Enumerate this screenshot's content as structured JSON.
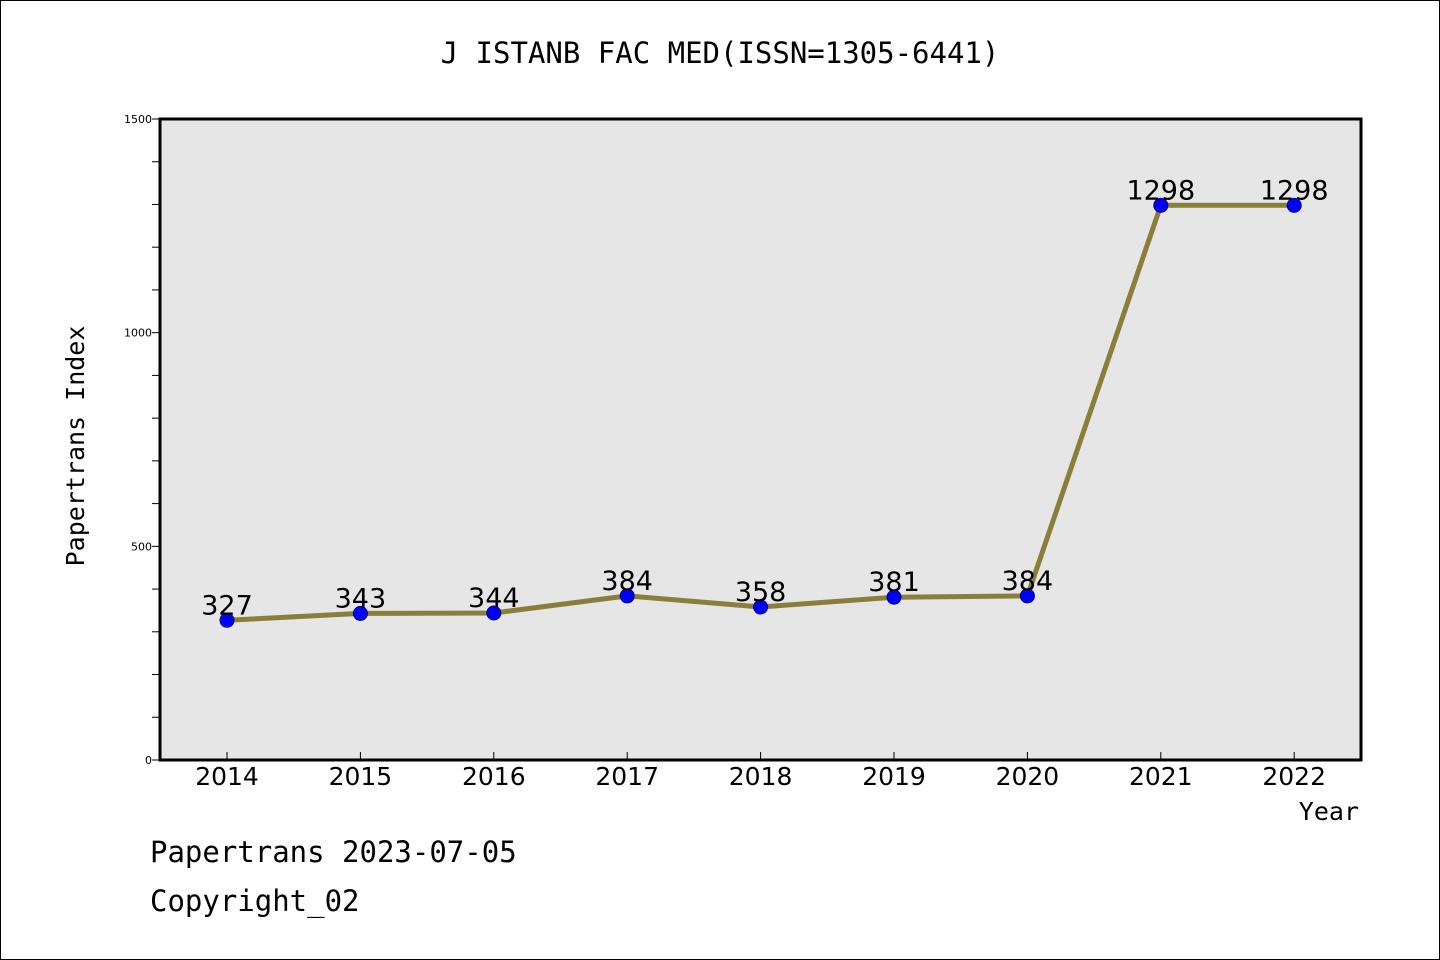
{
  "colors": {
    "plot_background": "#e6e6e6",
    "line": "#8b7d3a",
    "marker": "#0000ff",
    "axis": "#000000",
    "page_background": "#ffffff"
  },
  "footer": {
    "date": "Papertrans 2023-07-05",
    "copyright": "Copyright_02"
  },
  "chart_data": {
    "type": "line",
    "title": "J ISTANB FAC MED(ISSN=1305-6441)",
    "xlabel": "Year",
    "ylabel": "Papertrans Index",
    "categories": [
      "2014",
      "2015",
      "2016",
      "2017",
      "2018",
      "2019",
      "2020",
      "2021",
      "2022"
    ],
    "series": [
      {
        "values": [
          327,
          343,
          344,
          384,
          358,
          381,
          384,
          1298,
          1298
        ]
      }
    ],
    "data_labels": [
      "327",
      "343",
      "344",
      "384",
      "358",
      "381",
      "384",
      "1298",
      "1298"
    ],
    "ylim": [
      0,
      1500
    ],
    "yticks": [
      0,
      500,
      1000,
      1500
    ],
    "ytick_labels": [
      "0",
      "500",
      "1000",
      "1500"
    ],
    "grid": false,
    "legend": "none"
  }
}
